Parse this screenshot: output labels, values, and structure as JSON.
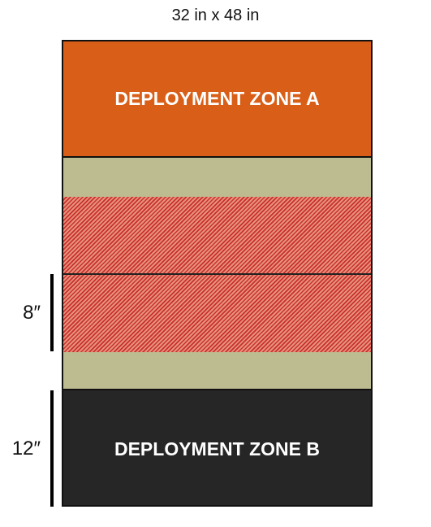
{
  "title": "32 in x 48 in",
  "zones": {
    "zone_a": {
      "label": "DEPLOYMENT ZONE A",
      "color": "#d95f18"
    },
    "zone_b": {
      "label": "DEPLOYMENT ZONE B",
      "color": "#262626"
    }
  },
  "middle": {
    "neutral_color": "#bdbb90",
    "hatch_colors": [
      "#e6917c",
      "#c9302c"
    ]
  },
  "dimensions": {
    "middle_band": "8″",
    "deployment_zone": "12″"
  }
}
